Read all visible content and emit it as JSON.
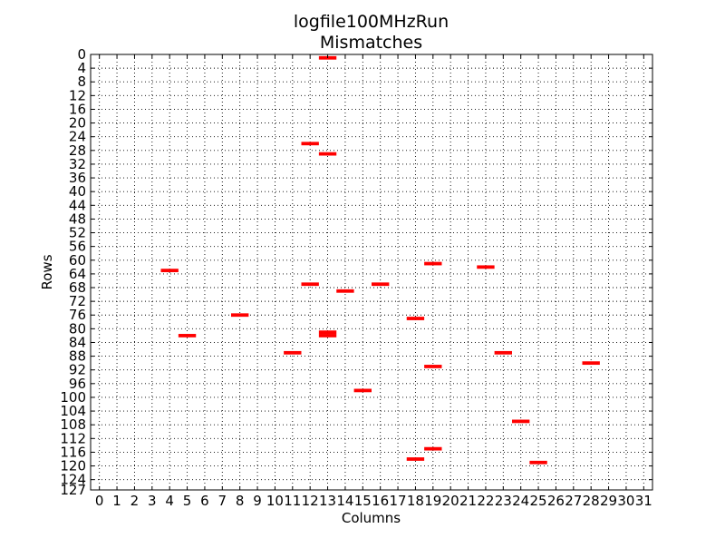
{
  "chart_data": {
    "type": "heatmap",
    "title": "logfile100MHzRun",
    "subtitle": "Mismatches",
    "xlabel": "Columns",
    "ylabel": "Rows",
    "x_ticks": [
      "0",
      "1",
      "2",
      "3",
      "4",
      "5",
      "6",
      "7",
      "8",
      "9",
      "10",
      "11",
      "12",
      "13",
      "14",
      "15",
      "16",
      "17",
      "18",
      "19",
      "20",
      "21",
      "22",
      "23",
      "24",
      "25",
      "26",
      "27",
      "28",
      "29",
      "30",
      "31"
    ],
    "y_ticks": [
      "0",
      "4",
      "8",
      "12",
      "16",
      "20",
      "24",
      "28",
      "32",
      "36",
      "40",
      "44",
      "48",
      "52",
      "56",
      "60",
      "64",
      "68",
      "72",
      "76",
      "80",
      "84",
      "88",
      "92",
      "96",
      "100",
      "104",
      "108",
      "112",
      "116",
      "120",
      "124",
      "127"
    ],
    "xlim": [
      -0.5,
      31.5
    ],
    "ylim": [
      127,
      0
    ],
    "grid": true,
    "marker_color": "#ff0000",
    "points": [
      {
        "col": 13,
        "row": 1
      },
      {
        "col": 12,
        "row": 26
      },
      {
        "col": 13,
        "row": 29
      },
      {
        "col": 4,
        "row": 63
      },
      {
        "col": 19,
        "row": 61
      },
      {
        "col": 22,
        "row": 62
      },
      {
        "col": 12,
        "row": 67
      },
      {
        "col": 14,
        "row": 69
      },
      {
        "col": 16,
        "row": 67
      },
      {
        "col": 8,
        "row": 76
      },
      {
        "col": 18,
        "row": 77
      },
      {
        "col": 5,
        "row": 82
      },
      {
        "col": 13,
        "row": 81
      },
      {
        "col": 13,
        "row": 82
      },
      {
        "col": 11,
        "row": 87
      },
      {
        "col": 23,
        "row": 87
      },
      {
        "col": 19,
        "row": 91
      },
      {
        "col": 28,
        "row": 90
      },
      {
        "col": 15,
        "row": 98
      },
      {
        "col": 24,
        "row": 107
      },
      {
        "col": 19,
        "row": 115
      },
      {
        "col": 18,
        "row": 118
      },
      {
        "col": 25,
        "row": 119
      }
    ]
  }
}
